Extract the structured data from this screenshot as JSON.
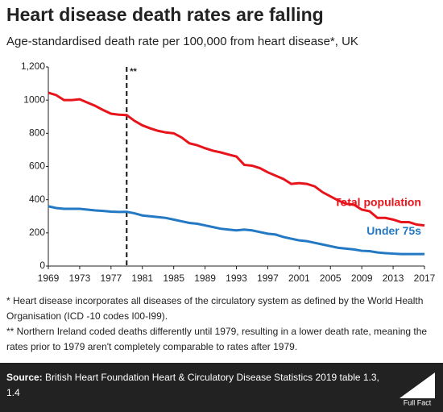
{
  "chart_data": {
    "type": "line",
    "title": "Heart disease death rates are falling",
    "subtitle": "Age-standardised death rate per 100,000 from heart disease*, UK",
    "x": [
      1969,
      1970,
      1971,
      1972,
      1973,
      1974,
      1975,
      1976,
      1977,
      1978,
      1979,
      1980,
      1981,
      1982,
      1983,
      1984,
      1985,
      1986,
      1987,
      1988,
      1989,
      1990,
      1991,
      1992,
      1993,
      1994,
      1995,
      1996,
      1997,
      1998,
      1999,
      2000,
      2001,
      2002,
      2003,
      2004,
      2005,
      2006,
      2007,
      2008,
      2009,
      2010,
      2011,
      2012,
      2013,
      2014,
      2015,
      2016,
      2017
    ],
    "series": [
      {
        "name": "Total population",
        "color": "#e8141b",
        "values": [
          1045,
          1030,
          1000,
          1000,
          1005,
          985,
          965,
          940,
          918,
          912,
          910,
          875,
          848,
          830,
          815,
          805,
          800,
          775,
          740,
          728,
          710,
          695,
          685,
          672,
          660,
          610,
          605,
          590,
          565,
          545,
          525,
          495,
          500,
          495,
          480,
          445,
          420,
          395,
          375,
          370,
          340,
          330,
          290,
          290,
          280,
          265,
          265,
          250,
          245
        ]
      },
      {
        "name": "Under 75s",
        "color": "#2379c3",
        "values": [
          360,
          350,
          345,
          345,
          345,
          340,
          335,
          332,
          328,
          326,
          327,
          318,
          305,
          300,
          295,
          290,
          280,
          270,
          260,
          255,
          245,
          235,
          225,
          220,
          215,
          220,
          215,
          205,
          195,
          190,
          175,
          165,
          155,
          150,
          140,
          130,
          120,
          110,
          105,
          100,
          92,
          90,
          82,
          78,
          75,
          72,
          72,
          72,
          72
        ]
      }
    ],
    "xlim": [
      1969,
      2017
    ],
    "xticks": [
      1969,
      1973,
      1977,
      1981,
      1985,
      1989,
      1993,
      1997,
      2001,
      2005,
      2009,
      2013,
      2017
    ],
    "ylim": [
      0,
      1200
    ],
    "yticks": [
      0,
      200,
      400,
      600,
      800,
      1000,
      {
        "value": 1200,
        "label": "1,200"
      }
    ],
    "yticks_display": null,
    "reference_line": {
      "x": 1979,
      "label": "**"
    },
    "footnotes": [
      "* Heart disease incorporates all diseases of the circulatory system as defined by the World Health Organisation (ICD -10 codes I00-I99).",
      "** Northern Ireland coded deaths differently until 1979, resulting in a lower death rate, meaning the rates prior to 1979 aren't completely comparable to rates after 1979."
    ],
    "source_label": "Source:",
    "source_text": "British Heart Foundation Heart & Circulatory Disease Statistics 2019 table 1.3, 1.4",
    "logo": "Full Fact"
  }
}
